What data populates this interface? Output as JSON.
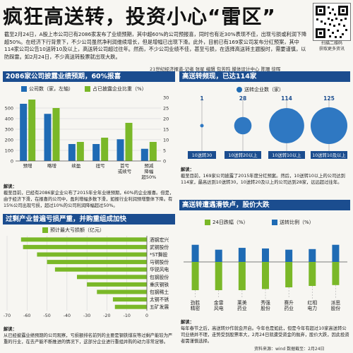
{
  "header": {
    "title": "疯狂高送转，投资小心“雷区”",
    "intro": "截至2月24日，A股上市公司已有2086家发布了业绩预期，其中超60%的公司预报喜，同时也有近30%表现不佳，出现亏损或利润下降超50%。在经济下行背景下，不少公司虽然净利润维续增长，但是增幅已出现下滑。此外，目前已有169家公司发布分红预案，其中114家公司公告10送转10及以上，高送转公司超过往年。然而，不少公司业绩不佳，甚至亏损，在选择高送转主题股时，需要谨慎，以防踩雷。如2月24日，不少高送转股票就出现大跌。",
    "credit": "21世纪经济报道-记者 张星  编辑 包芳鸣  媒体设计中心 陈珊 徐晖",
    "qr_caption_1": "扫描二维码",
    "qr_caption_2": "获取更多资讯"
  },
  "colors": {
    "blue": "#1f6bb4",
    "green": "#7ab828",
    "title_bg": "#1b4d8f",
    "dark_green": "#5e9a1c"
  },
  "section1": {
    "title": "2086家公司披露业绩预期，60%报喜",
    "legend_bar": "公司数（家，左轴）",
    "legend_line": "占已披露企业比重（%）",
    "note_label": "解读：",
    "note": "截至目前，已经有2086家企业公布了2015年全年业绩预期，60%的企业报喜。但是，由于经济下滑，在报喜的公司中，盈利增幅多数下滑，如报行业利润预增整体下降。有15%公司出现亏损，超过10%的公司利润降幅超过50%。",
    "chart_data": {
      "type": "bar",
      "categories": [
        "预增",
        "略增",
        "续盈",
        "扭亏",
        "首亏或续亏",
        "预减降幅超50%"
      ],
      "category_lines": [
        [
          "预增"
        ],
        [
          "略增"
        ],
        [
          "续盈"
        ],
        [
          "扭亏"
        ],
        [
          "首亏",
          "或续亏"
        ],
        [
          "预减",
          "降幅",
          "超50%"
        ]
      ],
      "series": [
        {
          "name": "公司数（家，左轴）",
          "axis": "left",
          "values": [
            540,
            445,
            160,
            160,
            205,
            115
          ]
        },
        {
          "name": "占已披露企业比重（%）",
          "axis": "right",
          "values": [
            29,
            25,
            9,
            11,
            18,
            9
          ]
        }
      ],
      "ylim_left": [
        0,
        600
      ],
      "yticks_left": [
        0,
        100,
        200,
        300,
        400,
        500
      ],
      "ylim_right": [
        0,
        30
      ],
      "yticks_right": [
        0,
        5,
        10,
        15,
        20,
        25,
        30
      ]
    }
  },
  "section2": {
    "title": "高送转频现，已达114家",
    "legend": "送转企业数（家）",
    "note_label": "解读：",
    "note": "截至目前，169家公司披露了2015年度分红预案。然后，10送转10以上的公司达到114家，最高达到10送转30，10送转20及以上的公司达到28家，远远超过往年。",
    "chart_data": {
      "type": "scatter",
      "categories": [
        "10送转30",
        "10送转20以上",
        "10送转10以上",
        "10送转10及以上"
      ],
      "values": [
        1,
        28,
        114,
        125
      ]
    }
  },
  "section3": {
    "title": "过剩产业普遍亏损严重，并购重组成加快",
    "legend": "预计最大亏损额（亿元）",
    "chart_data": {
      "type": "bar",
      "orientation": "horizontal",
      "categories": [
        "酒钢宏兴",
        "武钢股份",
        "*ST舞股",
        "马钢股份",
        "华锐风电",
        "包钢股份",
        "重庆钢铁",
        "包钢稀土",
        "太钢不锈",
        "五矿发展"
      ],
      "values": [
        -63,
        -62,
        -55,
        -50,
        -46,
        -35,
        -30,
        -25,
        -17,
        -16
      ],
      "xlim": [
        -70,
        0
      ],
      "xticks": [
        -70,
        -60,
        -50,
        -40,
        -30,
        -20,
        -10,
        0
      ]
    },
    "note_label": "解读：",
    "note": "从已经披露业绩预期的公司观察，亏损额排名前列的主要是钢铁煤炭等过剩产能较为严重的行业，在去产能不断推进的情况下，这部分企业进行重组并购的动力非常足够。"
  },
  "section4": {
    "title": "高送转遭遇滑铁卢，股价大跌",
    "legend_bar": "24日跌幅（%）",
    "legend_line": "送转比例（%）",
    "chart_data": {
      "type": "bar",
      "categories": [
        "劲胜精密",
        "金雷风电",
        "莱美药业",
        "秀强股份",
        "赛升药业",
        "红相电力",
        "派思股份"
      ],
      "category_lines": [
        [
          "劲胜",
          "精密"
        ],
        [
          "金雷",
          "风电"
        ],
        [
          "莱美",
          "药业"
        ],
        [
          "秀强",
          "股份"
        ],
        [
          "赛升",
          "药业"
        ],
        [
          "红相",
          "电力"
        ],
        [
          "派思",
          "股份"
        ]
      ],
      "series": [
        {
          "name": "24日跌幅（%）",
          "values": [
            -10.0,
            -10.0,
            -10.0,
            -9.6,
            -9.0,
            -8.5,
            -8.2
          ]
        },
        {
          "name": "送转比例（%）",
          "values": [
            28,
            20,
            23,
            22,
            20,
            21,
            28
          ]
        }
      ]
    },
    "note_label": "解读：",
    "note": "每年春节之后，高送转炒作就会开启。今年也是如此，但是今年有超过10家高送转公司业绩并不理，走势受到股票率大，2月24日就遭受资金的抛弃，股价大跌，因此投资者需谨慎选择。",
    "source": "资料来源：wind    数据截至：2月24日"
  }
}
